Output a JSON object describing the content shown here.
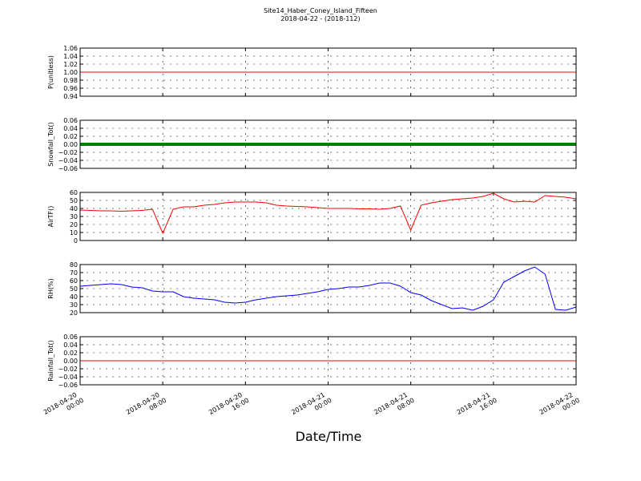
{
  "title": "Site14_Haber_Coney_Island_Fifteen",
  "subtitle": "2018-04-22 - (2018-112)",
  "x_label": "Date/Time",
  "chart_data": [
    {
      "type": "line",
      "y_label": "P(unitless)",
      "grid": true,
      "xlim": [
        "2018-04-20 00:00",
        "2018-04-22 00:00"
      ],
      "xticks": [
        "2018-04-20 00:00",
        "2018-04-20 08:00",
        "2018-04-20 16:00",
        "2018-04-21 00:00",
        "2018-04-21 08:00",
        "2018-04-21 16:00",
        "2018-04-22 00:00"
      ],
      "ylim": [
        0.94,
        1.06
      ],
      "yticks": [
        {
          "value": 0.94,
          "label": "0.94"
        },
        {
          "value": 0.96,
          "label": "0.96"
        },
        {
          "value": 0.98,
          "label": "0.98"
        },
        {
          "value": 1.0,
          "label": "1.00"
        },
        {
          "value": 1.02,
          "label": "1.02"
        },
        {
          "value": 1.04,
          "label": "1.04"
        },
        {
          "value": 1.06,
          "label": "1.06"
        }
      ],
      "x": [
        "2018-04-20 00:00",
        "2018-04-20 12:00",
        "2018-04-21 00:00",
        "2018-04-21 12:00",
        "2018-04-22 00:00"
      ],
      "series": [
        {
          "color": "#ff0000",
          "values": [
            1,
            1,
            1,
            1,
            1
          ]
        }
      ]
    },
    {
      "type": "line",
      "y_label": "Snowfall_Tot()",
      "grid": true,
      "markers": true,
      "xlim": [
        "2018-04-20 00:00",
        "2018-04-22 00:00"
      ],
      "xticks": [
        "2018-04-20 00:00",
        "2018-04-20 08:00",
        "2018-04-20 16:00",
        "2018-04-21 00:00",
        "2018-04-21 08:00",
        "2018-04-21 16:00",
        "2018-04-22 00:00"
      ],
      "ylim": [
        -0.06,
        0.06
      ],
      "yticks": [
        {
          "value": -0.06,
          "label": "−0.06"
        },
        {
          "value": -0.04,
          "label": "−0.04"
        },
        {
          "value": -0.02,
          "label": "−0.02"
        },
        {
          "value": 0,
          "label": "0.00"
        },
        {
          "value": 0.02,
          "label": "0.02"
        },
        {
          "value": 0.04,
          "label": "0.04"
        },
        {
          "value": 0.06,
          "label": "0.06"
        }
      ],
      "x": [
        "2018-04-20 00:00",
        "2018-04-20 12:00",
        "2018-04-21 00:00",
        "2018-04-21 12:00",
        "2018-04-22 00:00"
      ],
      "series": [
        {
          "color": "#008000",
          "values": [
            0,
            0,
            0,
            0,
            0
          ]
        }
      ]
    },
    {
      "type": "line",
      "y_label": "AirTF()",
      "grid": true,
      "xlim": [
        "2018-04-20 00:00",
        "2018-04-22 00:00"
      ],
      "xticks": [
        "2018-04-20 00:00",
        "2018-04-20 08:00",
        "2018-04-20 16:00",
        "2018-04-21 00:00",
        "2018-04-21 08:00",
        "2018-04-21 16:00",
        "2018-04-22 00:00"
      ],
      "ylim": [
        0,
        60
      ],
      "yticks": [
        0,
        10,
        20,
        30,
        40,
        50,
        60
      ],
      "x": [
        "2018-04-20 00:00",
        "2018-04-20 01:00",
        "2018-04-20 02:00",
        "2018-04-20 03:00",
        "2018-04-20 04:00",
        "2018-04-20 05:00",
        "2018-04-20 06:00",
        "2018-04-20 07:00",
        "2018-04-20 08:00",
        "2018-04-20 09:00",
        "2018-04-20 10:00",
        "2018-04-20 11:00",
        "2018-04-20 12:00",
        "2018-04-20 13:00",
        "2018-04-20 14:00",
        "2018-04-20 15:00",
        "2018-04-20 16:00",
        "2018-04-20 17:00",
        "2018-04-20 18:00",
        "2018-04-20 19:00",
        "2018-04-20 20:00",
        "2018-04-20 21:00",
        "2018-04-20 22:00",
        "2018-04-20 23:00",
        "2018-04-21 00:00",
        "2018-04-21 01:00",
        "2018-04-21 02:00",
        "2018-04-21 03:00",
        "2018-04-21 04:00",
        "2018-04-21 05:00",
        "2018-04-21 06:00",
        "2018-04-21 07:00",
        "2018-04-21 08:00",
        "2018-04-21 09:00",
        "2018-04-21 10:00",
        "2018-04-21 11:00",
        "2018-04-21 12:00",
        "2018-04-21 13:00",
        "2018-04-21 14:00",
        "2018-04-21 15:00",
        "2018-04-21 16:00",
        "2018-04-21 17:00",
        "2018-04-21 18:00",
        "2018-04-21 19:00",
        "2018-04-21 20:00",
        "2018-04-21 21:00",
        "2018-04-21 22:00",
        "2018-04-21 23:00",
        "2018-04-22 00:00"
      ],
      "series": [
        {
          "color": "#ff0000",
          "values": [
            38,
            37.5,
            37,
            37,
            36.5,
            37,
            37.5,
            39,
            9,
            39,
            42,
            42,
            44,
            45,
            47,
            48,
            48,
            48,
            47,
            44,
            43,
            42.5,
            42,
            41,
            40,
            40,
            40,
            39.5,
            39.5,
            39,
            40,
            43,
            13,
            44,
            47,
            49,
            51,
            52,
            53,
            55,
            59,
            52,
            48,
            49,
            48,
            56,
            55,
            54,
            52
          ]
        }
      ]
    },
    {
      "type": "line",
      "y_label": "RH(%)",
      "grid": true,
      "xlim": [
        "2018-04-20 00:00",
        "2018-04-22 00:00"
      ],
      "xticks": [
        "2018-04-20 00:00",
        "2018-04-20 08:00",
        "2018-04-20 16:00",
        "2018-04-21 00:00",
        "2018-04-21 08:00",
        "2018-04-21 16:00",
        "2018-04-22 00:00"
      ],
      "ylim": [
        20,
        80
      ],
      "yticks": [
        20,
        30,
        40,
        50,
        60,
        70,
        80
      ],
      "x": [
        "2018-04-20 00:00",
        "2018-04-20 01:00",
        "2018-04-20 02:00",
        "2018-04-20 03:00",
        "2018-04-20 04:00",
        "2018-04-20 05:00",
        "2018-04-20 06:00",
        "2018-04-20 07:00",
        "2018-04-20 08:00",
        "2018-04-20 09:00",
        "2018-04-20 10:00",
        "2018-04-20 11:00",
        "2018-04-20 12:00",
        "2018-04-20 13:00",
        "2018-04-20 14:00",
        "2018-04-20 15:00",
        "2018-04-20 16:00",
        "2018-04-20 17:00",
        "2018-04-20 18:00",
        "2018-04-20 19:00",
        "2018-04-20 20:00",
        "2018-04-20 21:00",
        "2018-04-20 22:00",
        "2018-04-20 23:00",
        "2018-04-21 00:00",
        "2018-04-21 01:00",
        "2018-04-21 02:00",
        "2018-04-21 03:00",
        "2018-04-21 04:00",
        "2018-04-21 05:00",
        "2018-04-21 06:00",
        "2018-04-21 07:00",
        "2018-04-21 08:00",
        "2018-04-21 09:00",
        "2018-04-21 10:00",
        "2018-04-21 11:00",
        "2018-04-21 12:00",
        "2018-04-21 13:00",
        "2018-04-21 14:00",
        "2018-04-21 15:00",
        "2018-04-21 16:00",
        "2018-04-21 17:00",
        "2018-04-21 18:00",
        "2018-04-21 19:00",
        "2018-04-21 20:00",
        "2018-04-21 21:00",
        "2018-04-21 22:00",
        "2018-04-21 23:00",
        "2018-04-22 00:00"
      ],
      "series": [
        {
          "color": "#0000ff",
          "values": [
            53,
            54,
            55,
            56,
            55,
            52,
            51,
            47,
            46,
            46,
            40,
            38,
            37,
            36,
            33,
            32,
            33,
            36,
            38,
            40,
            41,
            42,
            44,
            46,
            49,
            50,
            52,
            52,
            54,
            57,
            57,
            53,
            45,
            42,
            35,
            30,
            25,
            26,
            23,
            28,
            36,
            58,
            65,
            72,
            77,
            68,
            24,
            23,
            27
          ]
        }
      ]
    },
    {
      "type": "line",
      "y_label": "Rainfall_Tot()",
      "grid": true,
      "xlim": [
        "2018-04-20 00:00",
        "2018-04-22 00:00"
      ],
      "xticks": [
        {
          "value": "2018-04-20 00:00",
          "label": "2018-04-20\n00:00"
        },
        {
          "value": "2018-04-20 08:00",
          "label": "2018-04-20\n08:00"
        },
        {
          "value": "2018-04-20 16:00",
          "label": "2018-04-20\n16:00"
        },
        {
          "value": "2018-04-21 00:00",
          "label": "2018-04-21\n00:00"
        },
        {
          "value": "2018-04-21 08:00",
          "label": "2018-04-21\n08:00"
        },
        {
          "value": "2018-04-21 16:00",
          "label": "2018-04-21\n16:00"
        },
        {
          "value": "2018-04-22 00:00",
          "label": "2018-04-22\n00:00"
        }
      ],
      "ylim": [
        -0.06,
        0.06
      ],
      "yticks": [
        {
          "value": -0.06,
          "label": "−0.06"
        },
        {
          "value": -0.04,
          "label": "−0.04"
        },
        {
          "value": -0.02,
          "label": "−0.02"
        },
        {
          "value": 0,
          "label": "0.00"
        },
        {
          "value": 0.02,
          "label": "0.02"
        },
        {
          "value": 0.04,
          "label": "0.04"
        },
        {
          "value": 0.06,
          "label": "0.06"
        }
      ],
      "x": [
        "2018-04-20 00:00",
        "2018-04-20 12:00",
        "2018-04-21 00:00",
        "2018-04-21 12:00",
        "2018-04-22 00:00"
      ],
      "series": [
        {
          "color": "#ff0000",
          "values": [
            0,
            0,
            0,
            0,
            0
          ]
        }
      ]
    }
  ]
}
